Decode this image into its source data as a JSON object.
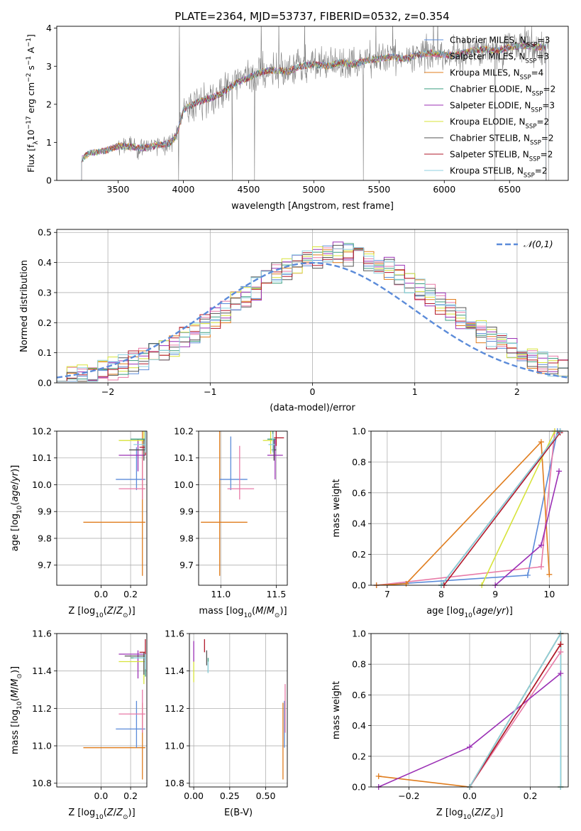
{
  "figure": {
    "title": "PLATE=2364, MJD=53737, FIBERID=0532, z=0.354"
  },
  "colors": {
    "Chabrier MILES": "#5b8bd9",
    "Salpeter MILES": "#e87aa7",
    "Kroupa MILES": "#e07d1e",
    "Chabrier ELODIE": "#3a9d7f",
    "Salpeter ELODIE": "#9b30b5",
    "Kroupa ELODIE": "#d7e33a",
    "Chabrier STELIB": "#555555",
    "Salpeter STELIB": "#b2182b",
    "Kroupa STELIB": "#8fd1e0",
    "data": "#808080",
    "grid": "#b0b0b0"
  },
  "chart_data": [
    {
      "id": "spectrum",
      "type": "line",
      "xlabel": "wavelength [Angstrom, rest frame]",
      "ylabel_parts": [
        "Flux [f",
        "λ",
        "10",
        "−17",
        " erg cm",
        "−2",
        " s",
        "−1",
        " A",
        "−1",
        "]"
      ],
      "xlim": [
        3030,
        6950
      ],
      "ylim": [
        0,
        4.05
      ],
      "xticks": [
        3500,
        4000,
        4500,
        5000,
        5500,
        6000,
        6500
      ],
      "yticks": [
        0,
        1,
        2,
        3,
        4
      ],
      "grid": false,
      "legend_position": "upper right",
      "legend": [
        {
          "label": "Chabrier MILES, N",
          "sub": "SSP",
          "tail": "=3"
        },
        {
          "label": "Salpeter MILES, N",
          "sub": "SSP",
          "tail": "=3"
        },
        {
          "label": "Kroupa MILES, N",
          "sub": "SSP",
          "tail": "=4"
        },
        {
          "label": "Chabrier ELODIE, N",
          "sub": "SSP",
          "tail": "=2"
        },
        {
          "label": "Salpeter ELODIE, N",
          "sub": "SSP",
          "tail": "=3"
        },
        {
          "label": "Kroupa ELODIE, N",
          "sub": "SSP",
          "tail": "=2"
        },
        {
          "label": "Chabrier STELIB, N",
          "sub": "SSP",
          "tail": "=2"
        },
        {
          "label": "Salpeter STELIB, N",
          "sub": "SSP",
          "tail": "=2"
        },
        {
          "label": "Kroupa STELIB, N",
          "sub": "SSP",
          "tail": "=2"
        }
      ],
      "continuum": {
        "x": [
          3220,
          3280,
          3400,
          3500,
          3600,
          3700,
          3800,
          3900,
          3950,
          4000,
          4100,
          4200,
          4300,
          4400,
          4500,
          4600,
          4700,
          4800,
          4900,
          5000,
          5100,
          5200,
          5300,
          5400,
          5500,
          5600,
          5700,
          5800,
          5900,
          6000,
          6100,
          6200,
          6300,
          6400,
          6500,
          6600,
          6700,
          6790
        ],
        "y": [
          0.55,
          0.72,
          0.78,
          0.9,
          0.88,
          0.85,
          0.92,
          0.98,
          1.2,
          1.85,
          2.05,
          2.15,
          2.3,
          2.55,
          2.7,
          2.85,
          2.9,
          2.85,
          3.0,
          3.05,
          3.0,
          3.1,
          3.05,
          3.15,
          3.2,
          3.25,
          3.2,
          3.3,
          3.35,
          3.3,
          3.3,
          3.4,
          3.45,
          3.4,
          3.5,
          3.55,
          3.5,
          3.5
        ]
      },
      "data_range": [
        3220,
        6800
      ]
    },
    {
      "id": "residuals",
      "type": "histogram",
      "xlabel": "(data-model)/error",
      "ylabel": "Normed distribution",
      "xlim": [
        -2.5,
        2.5
      ],
      "ylim": [
        0,
        0.51
      ],
      "xticks": [
        -2,
        -1,
        0,
        1,
        2
      ],
      "yticks": [
        0,
        0.1,
        0.2,
        0.3,
        0.4,
        0.5
      ],
      "grid": true,
      "legend_position": "upper right",
      "gaussian_label": "𝒩(0,1)",
      "bin_width": 0.1,
      "bin_start": -2.5
    },
    {
      "id": "age-vs-Z",
      "type": "errorbar",
      "xlabel": "Z [log10(Z/Z⊙)]",
      "ylabel": "age  [log10(age/yr)]",
      "xlim": [
        -0.3,
        0.31
      ],
      "ylim": [
        9.625,
        10.2
      ],
      "xticks": [
        0.0,
        0.2
      ],
      "yticks": [
        9.7,
        9.8,
        9.9,
        10.0,
        10.1,
        10.2
      ],
      "points": [
        {
          "model": "Kroupa MILES",
          "x": 0.28,
          "xerr": [
            0.4,
            0.02
          ],
          "y": 9.86,
          "yerr": [
            0.2,
            0.34
          ]
        },
        {
          "model": "Chabrier MILES",
          "x": 0.24,
          "xerr": [
            0.14,
            0.06
          ],
          "y": 10.02,
          "yerr": [
            0.04,
            0.12
          ]
        },
        {
          "model": "Salpeter MILES",
          "x": 0.28,
          "xerr": [
            0.16,
            0.02
          ],
          "y": 9.985,
          "yerr": [
            0.04,
            0.16
          ]
        },
        {
          "model": "Salpeter ELODIE",
          "x": 0.25,
          "xerr": [
            0.13,
            0.05
          ],
          "y": 10.11,
          "yerr": [
            0.06,
            0.06
          ]
        },
        {
          "model": "Kroupa ELODIE",
          "x": 0.29,
          "xerr": [
            0.17,
            0.01
          ],
          "y": 10.165,
          "yerr": [
            0.05,
            0.12
          ]
        },
        {
          "model": "Chabrier STELIB",
          "x": 0.29,
          "xerr": [
            0.1,
            0.01
          ],
          "y": 10.13,
          "yerr": [
            0.04,
            0.04
          ]
        },
        {
          "model": "Chabrier ELODIE",
          "x": 0.3,
          "xerr": [
            0.1,
            0.0
          ],
          "y": 10.17,
          "yerr": [
            0.04,
            0.03
          ]
        },
        {
          "model": "Salpeter STELIB",
          "x": 0.3,
          "xerr": [
            0.04,
            0.0
          ],
          "y": 10.14,
          "yerr": [
            0.03,
            0.06
          ]
        },
        {
          "model": "Kroupa STELIB",
          "x": 0.3,
          "xerr": [
            0.08,
            0.0
          ],
          "y": 10.15,
          "yerr": [
            0.03,
            0.05
          ]
        }
      ]
    },
    {
      "id": "age-vs-mass",
      "type": "errorbar",
      "xlabel": "mass [log10(M/M⊙)]",
      "xlim": [
        10.8,
        11.6
      ],
      "ylim": [
        9.625,
        10.2
      ],
      "xticks": [
        11.0,
        11.5
      ],
      "yticks": [
        9.7,
        9.8,
        9.9,
        10.0,
        10.1,
        10.2
      ],
      "points": [
        {
          "model": "Kroupa MILES",
          "x": 10.99,
          "xerr": [
            0.17,
            0.25
          ],
          "y": 9.86,
          "yerr": [
            0.2,
            0.34
          ]
        },
        {
          "model": "Chabrier MILES",
          "x": 11.09,
          "xerr": [
            0.1,
            0.15
          ],
          "y": 10.02,
          "yerr": [
            0.04,
            0.16
          ]
        },
        {
          "model": "Salpeter MILES",
          "x": 11.17,
          "xerr": [
            0.11,
            0.13
          ],
          "y": 9.985,
          "yerr": [
            0.04,
            0.16
          ]
        },
        {
          "model": "Salpeter ELODIE",
          "x": 11.49,
          "xerr": [
            0.07,
            0.07
          ],
          "y": 10.11,
          "yerr": [
            0.09,
            0.06
          ]
        },
        {
          "model": "Kroupa ELODIE",
          "x": 11.45,
          "xerr": [
            0.07,
            0.03
          ],
          "y": 10.165,
          "yerr": [
            0.05,
            0.04
          ]
        },
        {
          "model": "Chabrier STELIB",
          "x": 11.48,
          "xerr": [
            0.02,
            0.02
          ],
          "y": 10.13,
          "yerr": [
            0.04,
            0.04
          ]
        },
        {
          "model": "Chabrier ELODIE",
          "x": 11.47,
          "xerr": [
            0.05,
            0.03
          ],
          "y": 10.17,
          "yerr": [
            0.04,
            0.03
          ]
        },
        {
          "model": "Salpeter STELIB",
          "x": 11.5,
          "xerr": [
            0.02,
            0.07
          ],
          "y": 10.175,
          "yerr": [
            0.03,
            0.05
          ]
        },
        {
          "model": "Kroupa STELIB",
          "x": 11.47,
          "xerr": [
            0.04,
            0.02
          ],
          "y": 10.15,
          "yerr": [
            0.03,
            0.04
          ]
        }
      ]
    },
    {
      "id": "mass-weight-vs-age",
      "type": "line",
      "xlabel": "age  [log10(age/yr)]",
      "ylabel": "mass weight",
      "xlim": [
        6.7,
        10.35
      ],
      "ylim": [
        0,
        1.0
      ],
      "xticks": [
        7,
        8,
        9,
        10
      ],
      "yticks": [
        0.0,
        0.2,
        0.4,
        0.6,
        0.8,
        1.0
      ],
      "grid": true,
      "series": [
        {
          "model": "Chabrier MILES",
          "x": [
            6.8,
            9.6,
            10.15
          ],
          "y": [
            0.0,
            0.065,
            1.0
          ]
        },
        {
          "model": "Salpeter MILES",
          "x": [
            6.8,
            9.85,
            10.1
          ],
          "y": [
            0.0,
            0.12,
            1.0
          ]
        },
        {
          "model": "Kroupa MILES",
          "x": [
            6.8,
            7.35,
            9.85,
            10.0
          ],
          "y": [
            0.0,
            0.01,
            0.93,
            0.07
          ]
        },
        {
          "model": "Chabrier ELODIE",
          "x": [
            8.0,
            10.2
          ],
          "y": [
            0.0,
            1.0
          ]
        },
        {
          "model": "Salpeter ELODIE",
          "x": [
            9.0,
            9.85,
            10.18
          ],
          "y": [
            0.0,
            0.26,
            0.74
          ]
        },
        {
          "model": "Kroupa ELODIE",
          "x": [
            8.75,
            10.1
          ],
          "y": [
            0.0,
            1.0
          ]
        },
        {
          "model": "Chabrier STELIB",
          "x": [
            8.0,
            10.2
          ],
          "y": [
            0.0,
            1.0
          ]
        },
        {
          "model": "Salpeter STELIB",
          "x": [
            8.05,
            10.2
          ],
          "y": [
            0.0,
            0.99
          ]
        },
        {
          "model": "Kroupa STELIB",
          "x": [
            8.0,
            10.2
          ],
          "y": [
            0.0,
            1.0
          ]
        }
      ]
    },
    {
      "id": "mass-vs-Z",
      "type": "errorbar",
      "xlabel": "Z [log10(Z/Z⊙)]",
      "ylabel": "mass [log10(M/M⊙)]",
      "xlim": [
        -0.3,
        0.31
      ],
      "ylim": [
        10.78,
        11.6
      ],
      "xticks": [
        0.0,
        0.2
      ],
      "yticks": [
        10.8,
        11.0,
        11.2,
        11.4,
        11.6
      ],
      "points": [
        {
          "model": "Kroupa MILES",
          "x": 0.28,
          "xerr": [
            0.4,
            0.02
          ],
          "y": 10.99,
          "yerr": [
            0.17,
            0.24
          ]
        },
        {
          "model": "Chabrier MILES",
          "x": 0.24,
          "xerr": [
            0.14,
            0.06
          ],
          "y": 11.09,
          "yerr": [
            0.1,
            0.15
          ]
        },
        {
          "model": "Salpeter MILES",
          "x": 0.28,
          "xerr": [
            0.16,
            0.02
          ],
          "y": 11.17,
          "yerr": [
            0.1,
            0.13
          ]
        },
        {
          "model": "Salpeter ELODIE",
          "x": 0.25,
          "xerr": [
            0.13,
            0.05
          ],
          "y": 11.49,
          "yerr": [
            0.13,
            0.02
          ]
        },
        {
          "model": "Kroupa ELODIE",
          "x": 0.29,
          "xerr": [
            0.17,
            0.01
          ],
          "y": 11.45,
          "yerr": [
            0.12,
            0.05
          ]
        },
        {
          "model": "Chabrier STELIB",
          "x": 0.29,
          "xerr": [
            0.13,
            0.01
          ],
          "y": 11.48,
          "yerr": [
            0.1,
            0.02
          ]
        },
        {
          "model": "Chabrier ELODIE",
          "x": 0.3,
          "xerr": [
            0.1,
            0.0
          ],
          "y": 11.47,
          "yerr": [
            0.1,
            0.02
          ]
        },
        {
          "model": "Salpeter STELIB",
          "x": 0.3,
          "xerr": [
            0.04,
            0.0
          ],
          "y": 11.5,
          "yerr": [
            0.04,
            0.07
          ]
        },
        {
          "model": "Kroupa STELIB",
          "x": 0.3,
          "xerr": [
            0.08,
            0.0
          ],
          "y": 11.47,
          "yerr": [
            0.06,
            0.02
          ]
        }
      ]
    },
    {
      "id": "mass-vs-ebv",
      "type": "errorbar",
      "xlabel": "E(B-V)",
      "xlim": [
        -0.03,
        0.65
      ],
      "ylim": [
        10.78,
        11.6
      ],
      "xticks": [
        0.0,
        0.25,
        0.5
      ],
      "yticks": [
        10.8,
        11.0,
        11.2,
        11.4,
        11.6
      ],
      "points": [
        {
          "model": "Kroupa MILES",
          "x": 0.62,
          "xerr": [
            0.0,
            0.0
          ],
          "y": 10.99,
          "yerr": [
            0.17,
            0.24
          ]
        },
        {
          "model": "Chabrier MILES",
          "x": 0.63,
          "xerr": [
            0.0,
            0.0
          ],
          "y": 11.09,
          "yerr": [
            0.1,
            0.15
          ]
        },
        {
          "model": "Salpeter MILES",
          "x": 0.635,
          "xerr": [
            0.0,
            0.0
          ],
          "y": 11.17,
          "yerr": [
            0.1,
            0.16
          ]
        },
        {
          "model": "Salpeter ELODIE",
          "x": 0.0,
          "xerr": [
            0.0,
            0.0
          ],
          "y": 11.49,
          "yerr": [
            0.04,
            0.07
          ]
        },
        {
          "model": "Kroupa ELODIE",
          "x": 0.0,
          "xerr": [
            0.0,
            0.0
          ],
          "y": 11.4,
          "yerr": [
            0.06,
            0.05
          ]
        },
        {
          "model": "Chabrier STELIB",
          "x": 0.09,
          "xerr": [
            0.0,
            0.0
          ],
          "y": 11.47,
          "yerr": [
            0.04,
            0.04
          ]
        },
        {
          "model": "Chabrier ELODIE",
          "x": 0.1,
          "xerr": [
            0.0,
            0.0
          ],
          "y": 11.43,
          "yerr": [
            0.04,
            0.04
          ]
        },
        {
          "model": "Salpeter STELIB",
          "x": 0.075,
          "xerr": [
            0.0,
            0.0
          ],
          "y": 11.52,
          "yerr": [
            0.02,
            0.05
          ]
        },
        {
          "model": "Kroupa STELIB",
          "x": 0.1,
          "xerr": [
            0.0,
            0.0
          ],
          "y": 11.42,
          "yerr": [
            0.03,
            0.03
          ]
        }
      ]
    },
    {
      "id": "mass-weight-vs-Z",
      "type": "line",
      "xlabel": "Z [log10(Z/Z⊙)]",
      "ylabel": "mass weight",
      "xlim": [
        -0.325,
        0.325
      ],
      "ylim": [
        0,
        1.0
      ],
      "xticks": [
        -0.2,
        0.0,
        0.2
      ],
      "yticks": [
        0.0,
        0.2,
        0.4,
        0.6,
        0.8,
        1.0
      ],
      "grid": true,
      "series": [
        {
          "model": "Chabrier MILES",
          "x": [
            0.0,
            0.3,
            0.3
          ],
          "y": [
            0.0,
            0.93,
            1.0
          ]
        },
        {
          "model": "Salpeter MILES",
          "x": [
            0.0,
            0.3,
            0.3
          ],
          "y": [
            0.0,
            0.88,
            1.0
          ]
        },
        {
          "model": "Kroupa MILES",
          "x": [
            -0.3,
            0.0,
            0.3,
            0.3
          ],
          "y": [
            0.07,
            0.0,
            0.93,
            1.0
          ]
        },
        {
          "model": "Chabrier ELODIE",
          "x": [
            0.0,
            0.3,
            0.3
          ],
          "y": [
            0.0,
            1.0,
            0.0
          ]
        },
        {
          "model": "Salpeter ELODIE",
          "x": [
            -0.3,
            0.0,
            0.3
          ],
          "y": [
            0.0,
            0.26,
            0.74
          ]
        },
        {
          "model": "Kroupa ELODIE",
          "x": [
            0.0,
            0.3,
            0.3
          ],
          "y": [
            0.0,
            1.0,
            0.0
          ]
        },
        {
          "model": "Chabrier STELIB",
          "x": [
            0.0,
            0.3,
            0.3
          ],
          "y": [
            0.0,
            1.0,
            0.0
          ]
        },
        {
          "model": "Salpeter STELIB",
          "x": [
            0.0,
            0.3,
            0.3
          ],
          "y": [
            0.0,
            0.93,
            1.0
          ]
        },
        {
          "model": "Kroupa STELIB",
          "x": [
            0.0,
            0.3,
            0.3
          ],
          "y": [
            0.0,
            1.0,
            0.0
          ]
        }
      ]
    }
  ]
}
